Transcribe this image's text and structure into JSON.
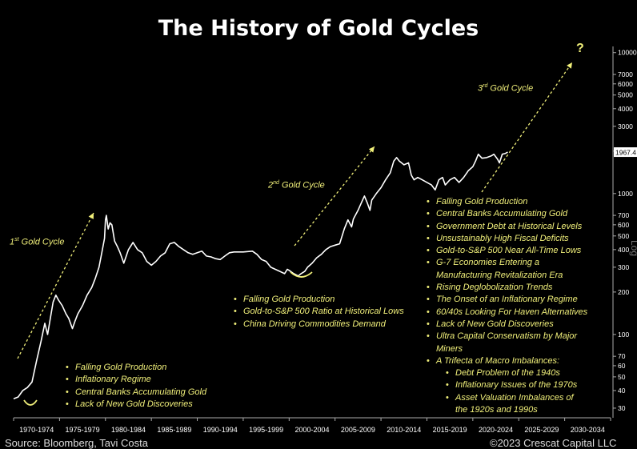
{
  "chart_data": {
    "type": "line",
    "title": "The History of Gold Cycles",
    "y_scale": "log",
    "ylim": [
      25,
      11000
    ],
    "y_ticks": [
      30,
      40,
      50,
      60,
      70,
      100,
      200,
      300,
      400,
      500,
      600,
      700,
      1000,
      2000,
      3000,
      4000,
      5000,
      6000,
      7000,
      10000
    ],
    "y_axis_side": "right",
    "y_axis_label": "Log",
    "x_categories": [
      "1970-1974",
      "1975-1979",
      "1980-1984",
      "1985-1989",
      "1990-1994",
      "1995-1999",
      "2000-2004",
      "2005-2009",
      "2010-2014",
      "2015-2019",
      "2020-2024",
      "2025-2029",
      "2030-2034"
    ],
    "x_range": [
      1970,
      2035
    ],
    "last_value_label": "1967.4",
    "series": [
      {
        "color": "#ffffff",
        "x": [
          1970.0,
          1970.5,
          1971.0,
          1971.5,
          1972.0,
          1972.5,
          1973.0,
          1973.4,
          1973.7,
          1974.0,
          1974.3,
          1974.6,
          1974.9,
          1975.3,
          1975.7,
          1976.0,
          1976.4,
          1976.7,
          1977.0,
          1977.5,
          1978.0,
          1978.5,
          1978.9,
          1979.3,
          1979.6,
          1979.9,
          1980.0,
          1980.1,
          1980.3,
          1980.5,
          1980.7,
          1981.0,
          1981.3,
          1981.6,
          1982.0,
          1982.5,
          1983.0,
          1983.5,
          1984.0,
          1984.5,
          1985.0,
          1985.5,
          1986.0,
          1986.5,
          1987.0,
          1987.5,
          1988.0,
          1988.5,
          1989.0,
          1989.5,
          1990.0,
          1990.5,
          1991.0,
          1991.5,
          1992.0,
          1992.5,
          1993.0,
          1993.5,
          1994.0,
          1995.0,
          1996.0,
          1996.5,
          1997.0,
          1997.5,
          1998.0,
          1998.5,
          1999.0,
          1999.5,
          1999.8,
          2000.0,
          2000.5,
          2001.0,
          2001.3,
          2001.7,
          2002.0,
          2002.5,
          2003.0,
          2003.5,
          2004.0,
          2004.5,
          2005.0,
          2005.5,
          2006.0,
          2006.4,
          2006.8,
          2007.0,
          2007.5,
          2008.0,
          2008.2,
          2008.5,
          2008.8,
          2009.0,
          2009.5,
          2010.0,
          2010.5,
          2011.0,
          2011.4,
          2011.7,
          2012.0,
          2012.5,
          2013.0,
          2013.3,
          2013.6,
          2014.0,
          2014.5,
          2015.0,
          2015.5,
          2015.9,
          2016.3,
          2016.7,
          2017.0,
          2017.5,
          2018.0,
          2018.5,
          2019.0,
          2019.5,
          2020.0,
          2020.3,
          2020.6,
          2021.0,
          2021.5,
          2022.0,
          2022.3,
          2022.7,
          2022.9,
          2023.2,
          2023.5,
          2023.8
        ],
        "y": [
          35,
          36,
          40,
          42,
          46,
          65,
          90,
          120,
          100,
          130,
          170,
          190,
          175,
          160,
          140,
          130,
          110,
          125,
          140,
          160,
          190,
          215,
          250,
          300,
          380,
          480,
          650,
          700,
          560,
          620,
          600,
          460,
          420,
          380,
          320,
          400,
          450,
          400,
          380,
          330,
          310,
          330,
          360,
          380,
          440,
          450,
          420,
          400,
          380,
          370,
          380,
          390,
          360,
          355,
          345,
          340,
          360,
          380,
          385,
          385,
          390,
          370,
          340,
          330,
          300,
          290,
          280,
          270,
          290,
          285,
          270,
          260,
          270,
          280,
          300,
          320,
          350,
          370,
          400,
          420,
          430,
          440,
          560,
          650,
          580,
          660,
          760,
          900,
          960,
          860,
          760,
          900,
          1000,
          1100,
          1250,
          1400,
          1700,
          1800,
          1700,
          1600,
          1650,
          1350,
          1250,
          1300,
          1250,
          1200,
          1150,
          1060,
          1250,
          1300,
          1150,
          1250,
          1300,
          1200,
          1300,
          1450,
          1550,
          1700,
          1900,
          1780,
          1800,
          1850,
          1900,
          1750,
          1650,
          1900,
          1920,
          1967.4
        ]
      }
    ]
  },
  "cycle_labels": {
    "c1": {
      "num": "1",
      "sup": "st",
      "text": " Gold Cycle"
    },
    "c2": {
      "num": "2",
      "sup": "nd",
      "text": " Gold Cycle"
    },
    "c3": {
      "num": "3",
      "sup": "rd",
      "text": " Gold Cycle"
    },
    "question": "?"
  },
  "bullets1": [
    "Falling Gold Production",
    "Inflationary Regime",
    "Central Banks Accumulating Gold",
    "Lack of New Gold Discoveries"
  ],
  "bullets2": [
    "Falling Gold Production",
    "Gold-to-S&P 500 Ratio at Historical Lows",
    "China Driving Commodities Demand"
  ],
  "bullets3": {
    "b1": "Falling Gold Production",
    "b2": "Central Banks Accumulating Gold",
    "b3": "Government Debt at Historical Levels",
    "b4": "Unsustainably High Fiscal Deficits",
    "b5": "Gold-to-S&P 500 Near All-Time Lows",
    "b6": "G-7 Economies Entering a",
    "b6b": "Manufacturing Revitalization Era",
    "b7": "Rising Deglobolization Trends",
    "b8": "The Onset of an Inflationary Regime",
    "b9": "60/40s Looking For Haven Alternatives",
    "b10": "Lack of New Gold Discoveries",
    "b11": "Ultra Capital Conservatism by Major",
    "b11b": "Miners",
    "b12": "A Trifecta of Macro Imbalances:",
    "s1": "Debt Problem of the 1940s",
    "s2": "Inflationary Issues of the 1970s",
    "s3": "Asset Valuation Imbalances of",
    "s3b": "the 1920s and 1990s"
  },
  "footer": {
    "source": "Source: Bloomberg, Tavi Costa",
    "copyright": "©2023 Crescat Capital LLC"
  },
  "colors": {
    "accent": "#f0ef7a",
    "line": "#ffffff",
    "background": "#000000"
  }
}
